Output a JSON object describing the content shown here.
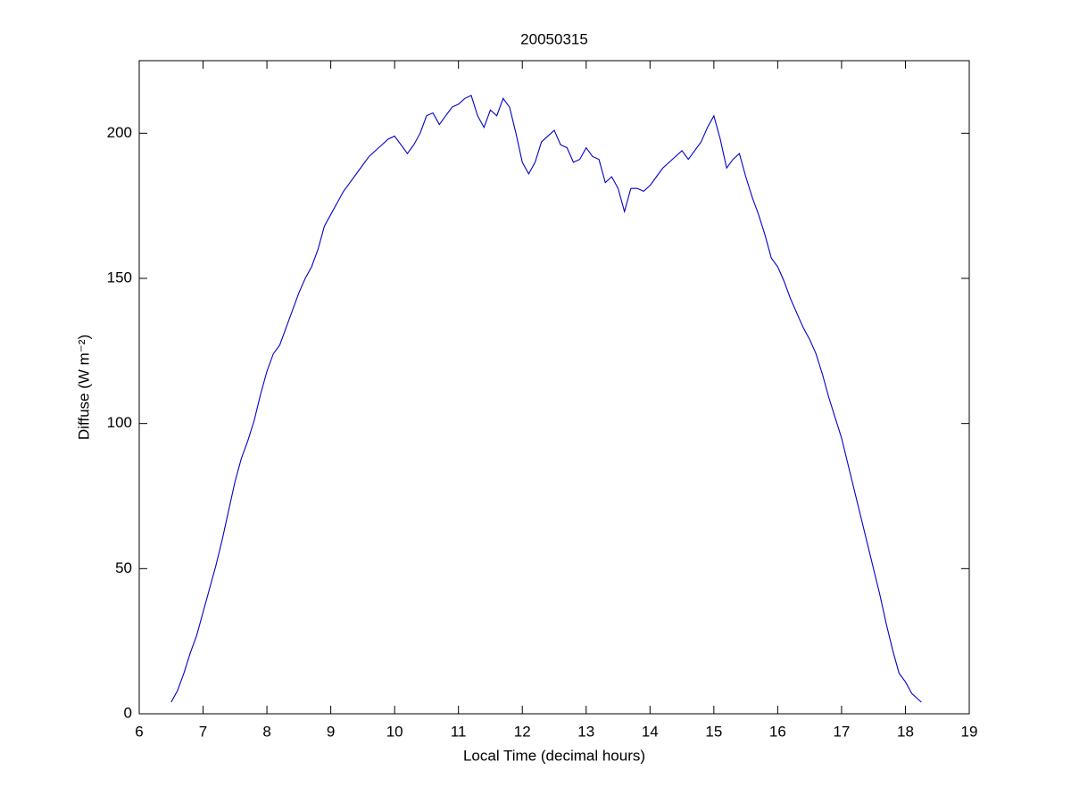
{
  "chart_data": {
    "type": "line",
    "title": "20050315",
    "xlabel": "Local Time (decimal hours)",
    "ylabel": "Diffuse (W m⁻²)",
    "x": [
      6.5,
      6.6,
      6.7,
      6.8,
      6.9,
      7.0,
      7.1,
      7.2,
      7.3,
      7.4,
      7.5,
      7.6,
      7.7,
      7.8,
      7.9,
      8.0,
      8.1,
      8.2,
      8.3,
      8.4,
      8.5,
      8.6,
      8.7,
      8.8,
      8.9,
      9.0,
      9.1,
      9.2,
      9.3,
      9.4,
      9.5,
      9.6,
      9.7,
      9.8,
      9.9,
      10.0,
      10.1,
      10.2,
      10.3,
      10.4,
      10.5,
      10.6,
      10.7,
      10.8,
      10.9,
      11.0,
      11.1,
      11.2,
      11.3,
      11.4,
      11.5,
      11.6,
      11.7,
      11.8,
      11.9,
      12.0,
      12.1,
      12.2,
      12.3,
      12.4,
      12.5,
      12.6,
      12.7,
      12.8,
      12.9,
      13.0,
      13.1,
      13.2,
      13.3,
      13.4,
      13.5,
      13.6,
      13.7,
      13.8,
      13.9,
      14.0,
      14.1,
      14.2,
      14.3,
      14.4,
      14.5,
      14.6,
      14.7,
      14.8,
      14.9,
      15.0,
      15.1,
      15.2,
      15.3,
      15.4,
      15.5,
      15.6,
      15.7,
      15.8,
      15.9,
      16.0,
      16.1,
      16.2,
      16.3,
      16.4,
      16.5,
      16.6,
      16.7,
      16.8,
      16.9,
      17.0,
      17.1,
      17.2,
      17.3,
      17.4,
      17.5,
      17.6,
      17.7,
      17.8,
      17.9,
      18.0,
      18.1,
      18.25
    ],
    "series": [
      {
        "name": "Diffuse",
        "color": "#0000cc",
        "values": [
          4,
          8,
          14,
          21,
          27,
          35,
          43,
          51,
          60,
          70,
          80,
          88,
          94,
          101,
          110,
          118,
          124,
          127,
          133,
          139,
          145,
          150,
          154,
          160,
          168,
          172,
          176,
          180,
          183,
          186,
          189,
          192,
          194,
          196,
          198,
          199,
          196,
          193,
          196,
          200,
          206,
          207,
          203,
          206,
          209,
          210,
          212,
          213,
          206,
          202,
          208,
          206,
          212,
          209,
          200,
          190,
          186,
          190,
          197,
          199,
          201,
          196,
          195,
          190,
          191,
          195,
          192,
          191,
          183,
          185,
          181,
          173,
          181,
          181,
          180,
          182,
          185,
          188,
          190,
          192,
          194,
          191,
          194,
          197,
          202,
          206,
          198,
          188,
          191,
          193,
          185,
          178,
          172,
          165,
          157,
          154,
          149,
          143,
          138,
          133,
          129,
          124,
          117,
          109,
          102,
          95,
          86,
          77,
          68,
          59,
          50,
          41,
          31,
          22,
          14,
          11,
          7,
          4
        ]
      }
    ],
    "xlim": [
      6,
      19
    ],
    "xticks": [
      6,
      7,
      8,
      9,
      10,
      11,
      12,
      13,
      14,
      15,
      16,
      17,
      18,
      19
    ],
    "ylim": [
      0,
      225
    ],
    "yticks": [
      0,
      50,
      100,
      150,
      200
    ],
    "grid": false
  }
}
